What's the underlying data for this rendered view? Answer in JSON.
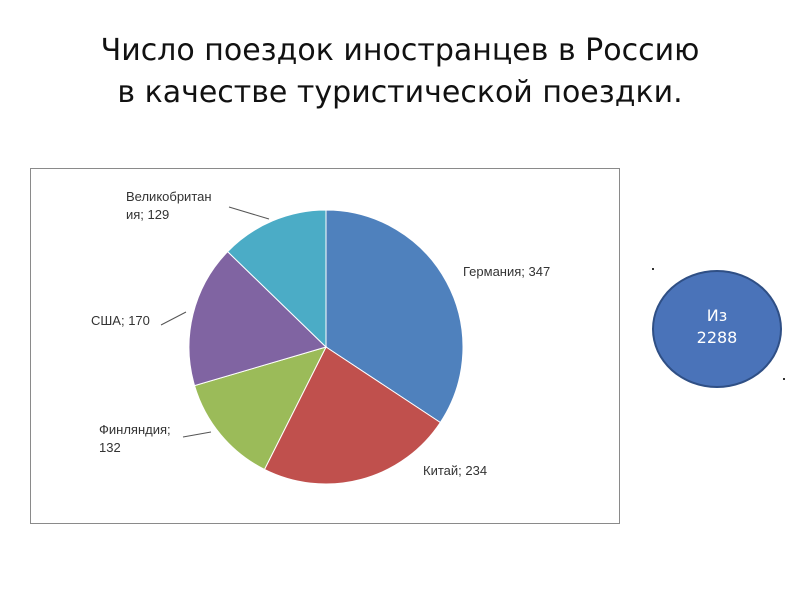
{
  "title": {
    "line1": "Число поездок иностранцев в Россию",
    "line2": "в качестве туристической поездки."
  },
  "total_badge": {
    "line1": "Из",
    "line2": "2288",
    "color": "#4a73b9"
  },
  "chart_data": {
    "type": "pie",
    "title": "",
    "start_angle": "12 o'clock",
    "direction": "clockwise",
    "slices": [
      {
        "label": [
          "Германия; 347"
        ],
        "value": 347,
        "color": "#4f81bd"
      },
      {
        "label": [
          "Китай; 234"
        ],
        "value": 234,
        "color": "#c0504d"
      },
      {
        "label": [
          "Финляндия;",
          "132"
        ],
        "value": 132,
        "color": "#9bbb59"
      },
      {
        "label": [
          "США; 170"
        ],
        "value": 170,
        "color": "#8064a2"
      },
      {
        "label": [
          "Великобритан",
          "ия; 129"
        ],
        "value": 129,
        "color": "#4bacc6"
      }
    ]
  }
}
